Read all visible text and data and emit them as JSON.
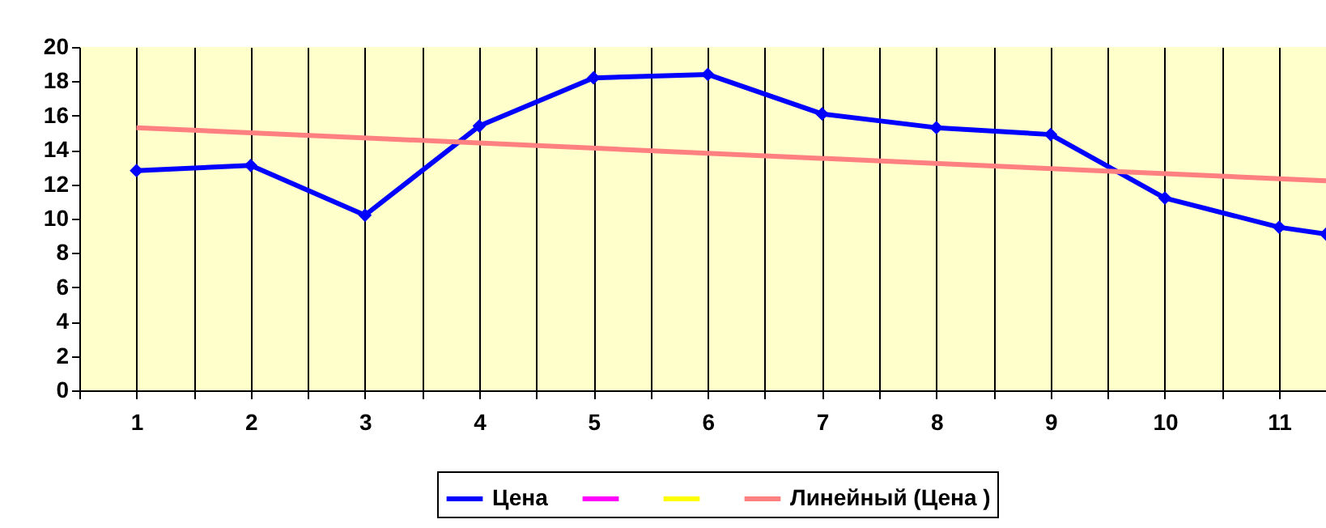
{
  "chart_data": {
    "type": "line",
    "x": [
      1,
      2,
      3,
      4,
      5,
      6,
      7,
      8,
      9,
      10,
      11,
      11.41
    ],
    "series": [
      {
        "name": "Цена",
        "color": "#0000ff",
        "marker": "diamond",
        "values": [
          12.8,
          13.1,
          10.2,
          15.4,
          18.2,
          18.4,
          16.1,
          15.3,
          14.9,
          11.2,
          9.5,
          9.1
        ]
      },
      {
        "color": "#ff00ff",
        "marker": "square",
        "values": [
          null,
          null,
          null,
          null,
          null,
          null,
          null,
          null,
          null,
          null,
          null,
          null
        ]
      },
      {
        "color": "#ffff00",
        "marker": "triangle",
        "values": [
          null,
          null,
          null,
          null,
          null,
          null,
          null,
          null,
          null,
          null,
          null,
          null
        ]
      },
      {
        "name": "Линейный (Цена )",
        "color": "#ff8080",
        "marker": "none",
        "x": [
          1,
          11.41
        ],
        "values": [
          15.3,
          12.2
        ]
      }
    ],
    "xlim": [
      0.5,
      11.41
    ],
    "xticks": [
      {
        "value": 0.5,
        "label": null
      },
      1,
      {
        "value": 1.5,
        "label": null
      },
      2,
      {
        "value": 2.5,
        "label": null
      },
      3,
      {
        "value": 3.5,
        "label": null
      },
      4,
      {
        "value": 4.5,
        "label": null
      },
      5,
      {
        "value": 5.5,
        "label": null
      },
      6,
      {
        "value": 6.5,
        "label": null
      },
      7,
      {
        "value": 7.5,
        "label": null
      },
      8,
      {
        "value": 8.5,
        "label": null
      },
      9,
      {
        "value": 9.5,
        "label": null
      },
      10,
      {
        "value": 10.5,
        "label": null
      },
      11
    ],
    "ylim": [
      0,
      20
    ],
    "yticks": [
      0,
      2,
      4,
      6,
      8,
      10,
      12,
      14,
      16,
      18,
      20
    ],
    "grid": "x",
    "legend": "bottom"
  }
}
